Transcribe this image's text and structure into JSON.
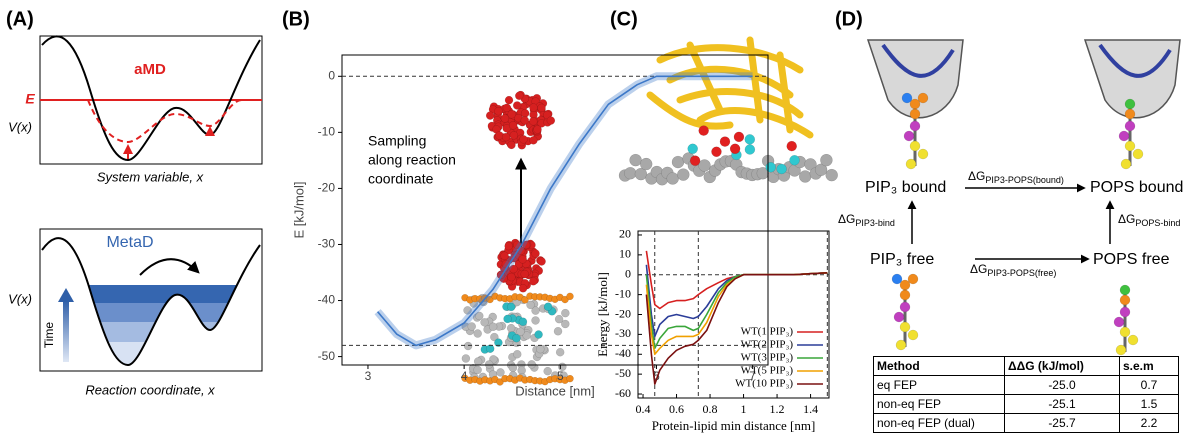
{
  "panel_labels": [
    "(A)",
    "(B)",
    "(C)",
    "(D)"
  ],
  "panel_a": {
    "top": {
      "title": "aMD",
      "energy_label": "E",
      "y_label": "V(x)",
      "x_label": "System variable, x"
    },
    "bottom": {
      "title": "MetaD",
      "y_label": "V(x)",
      "time_label": "Time",
      "x_label": "Reaction coordinate, x"
    }
  },
  "chart_data": [
    {
      "type": "line",
      "x_label": "Distance [nm]",
      "y_label": "E [kJ/mol]",
      "annotation": [
        "Sampling",
        "along reaction",
        "coordinate"
      ],
      "x": [
        3.1,
        3.3,
        3.5,
        3.7,
        4.0,
        4.3,
        4.6,
        4.9,
        5.2,
        5.5,
        5.8,
        6.0,
        6.5,
        7.0
      ],
      "series": [
        {
          "color": "#3c78c8",
          "values": [
            -42,
            -46,
            -48,
            -47,
            -44,
            -38,
            -30,
            -20,
            -12,
            -5,
            -1.5,
            0,
            0,
            0
          ]
        }
      ],
      "xlim": [
        2.73,
        7.16
      ],
      "ylim": [
        -51.5,
        3.8
      ],
      "xticks": [
        3,
        4,
        5,
        6,
        7
      ],
      "yticks": [
        0,
        -10,
        -20,
        -30,
        -40,
        -50
      ],
      "reference_lines": [
        0,
        -48
      ]
    },
    {
      "type": "line",
      "x_label": "Protein-lipid min distance [nm]",
      "y_label": "Energy [kJ/mol]",
      "x": [
        0.42,
        0.45,
        0.47,
        0.5,
        0.55,
        0.6,
        0.65,
        0.7,
        0.73,
        0.78,
        0.85,
        0.9,
        0.95,
        1.0,
        1.05,
        1.1,
        1.2,
        1.3,
        1.4,
        1.5
      ],
      "series": [
        {
          "name": "WT(1 PIP₃)",
          "color": "#d62020",
          "values": [
            12,
            -5,
            -15,
            -17,
            -14,
            -13,
            -13,
            -12,
            -10,
            -7,
            -4,
            -2,
            -1,
            0,
            0,
            0,
            0,
            0,
            0.5,
            1
          ]
        },
        {
          "name": "WT(2 PIP₃)",
          "color": "#2b3d99",
          "values": [
            5,
            -20,
            -31,
            -25,
            -21,
            -20,
            -21,
            -22,
            -21,
            -16,
            -7,
            -3,
            -1,
            0,
            0,
            0,
            0,
            0,
            0.5,
            1
          ]
        },
        {
          "name": "WT(3 PIP₃)",
          "color": "#3aa63a",
          "values": [
            0,
            -25,
            -37,
            -32,
            -27,
            -26,
            -26,
            -28,
            -27,
            -20,
            -9,
            -4,
            -1,
            0,
            0,
            0,
            0,
            0,
            0.5,
            1
          ]
        },
        {
          "name": "WT(5 PIP₃)",
          "color": "#f0a000",
          "values": [
            -5,
            -30,
            -40,
            -37,
            -33,
            -31,
            -31,
            -31,
            -30,
            -24,
            -11,
            -5,
            -2,
            0,
            0,
            0,
            0,
            0,
            0.5,
            1
          ]
        },
        {
          "name": "WT(10 PIP₃)",
          "color": "#7a1010",
          "values": [
            -10,
            -40,
            -55,
            -48,
            -42,
            -38,
            -36,
            -35,
            -33,
            -28,
            -14,
            -6,
            -2,
            0,
            0,
            0,
            0,
            0,
            0.5,
            1
          ]
        }
      ],
      "xlim": [
        0.37,
        1.51
      ],
      "ylim": [
        -62,
        22
      ],
      "xticks": [
        0.4,
        0.6,
        0.8,
        1,
        1.2,
        1.4
      ],
      "yticks": [
        20,
        10,
        0,
        -10,
        -20,
        -30,
        -40,
        -50,
        -60
      ],
      "reference_lines": [
        0
      ],
      "vertical_reference_lines": [
        0.47,
        0.73,
        1.5
      ],
      "legend": "lower right"
    }
  ],
  "panel_d": {
    "states": {
      "pip3_bound": "PIP₃ bound",
      "pops_bound": "POPS bound",
      "pip3_free": "PIP₃ free",
      "pops_free": "POPS free"
    },
    "transitions": {
      "bound": {
        "symbol": "ΔG",
        "subscript": "PIP3-POPS(bound)"
      },
      "pip3_bind": {
        "symbol": "ΔG",
        "subscript": "PIP3-bind"
      },
      "pops_bind": {
        "symbol": "ΔG",
        "subscript": "POPS-bind"
      },
      "free": {
        "symbol": "ΔG",
        "subscript": "PIP3-POPS(free)"
      }
    }
  },
  "table": {
    "header": [
      "Method",
      "ΔΔG (kJ/mol)",
      "s.e.m"
    ],
    "rows": [
      [
        "eq FEP",
        "-25.0",
        "0.7"
      ],
      [
        "non-eq FEP",
        "-25.1",
        "1.5"
      ],
      [
        "non-eq FEP (dual)",
        "-25.7",
        "2.2"
      ]
    ]
  }
}
